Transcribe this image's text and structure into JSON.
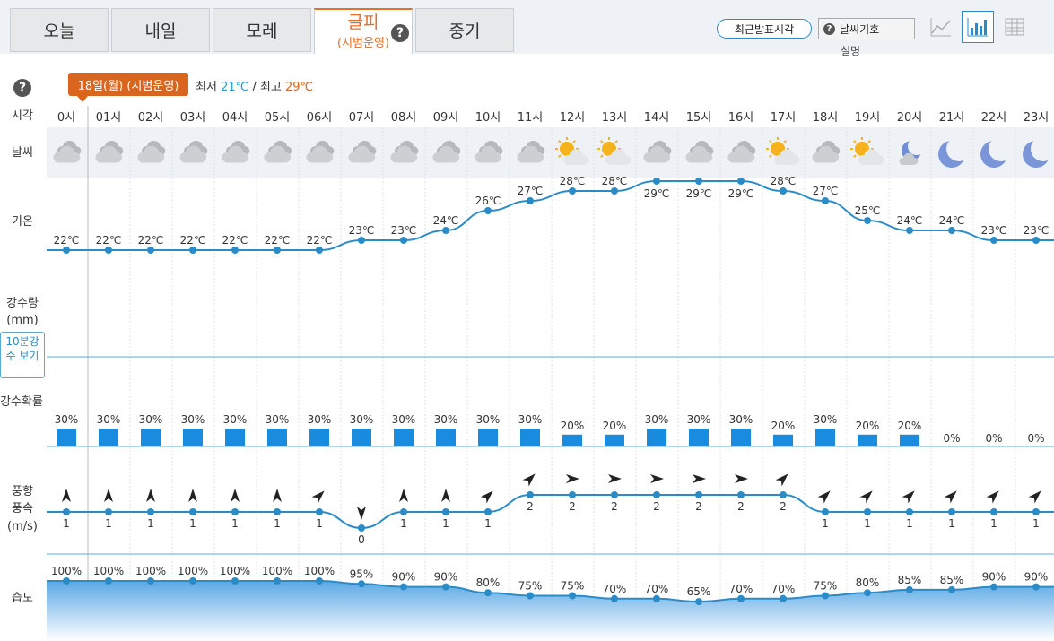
{
  "tabs": [
    {
      "label": "오늘"
    },
    {
      "label": "내일"
    },
    {
      "label": "모레"
    },
    {
      "label": "글피",
      "sub": "(시범운영)"
    },
    {
      "label": "중기"
    }
  ],
  "toolbar": {
    "recent_label": "최근발표시각",
    "symbols_label": "날씨기호",
    "explain_label": "설명"
  },
  "header": {
    "date_badge": "18일(월) (시범운영)",
    "min_label": "최저",
    "min_value": "21℃",
    "sep": "/",
    "max_label": "최고",
    "max_value": "29℃"
  },
  "row_labels": {
    "time": "시각",
    "weather": "날씨",
    "temp": "기온",
    "precip_amount": "강수량",
    "precip_unit": "(mm)",
    "ten_min_btn": "10분강수 보기",
    "precip_prob": "강수확률",
    "wind_dir": "풍향",
    "wind_speed": "풍속",
    "wind_unit": "(m/s)",
    "humidity": "습도"
  },
  "colors": {
    "accent_orange": "#d9651f",
    "line_blue": "#2b8bc7",
    "bar_blue": "#1a8ce0",
    "weather_row_bg": "#eef2f6"
  },
  "hours": [
    "0시",
    "01시",
    "02시",
    "03시",
    "04시",
    "05시",
    "06시",
    "07시",
    "08시",
    "09시",
    "10시",
    "11시",
    "12시",
    "13시",
    "14시",
    "15시",
    "16시",
    "17시",
    "18시",
    "19시",
    "20시",
    "21시",
    "22시",
    "23시"
  ],
  "weather_icons": [
    "cloud-icon",
    "cloud-icon",
    "cloud-icon",
    "cloud-icon",
    "cloud-icon",
    "cloud-icon",
    "cloud-icon",
    "cloud-icon",
    "cloud-icon",
    "cloud-icon",
    "cloud-icon",
    "cloud-icon",
    "sun-cloud-icon",
    "sun-cloud-icon",
    "cloud-icon",
    "cloud-icon",
    "cloud-icon",
    "sun-cloud-icon",
    "cloud-icon",
    "sun-cloud-icon",
    "moon-cloud-icon",
    "moon-icon",
    "moon-icon",
    "moon-icon"
  ],
  "chart_data": [
    {
      "type": "line",
      "name": "기온",
      "unit": "℃",
      "x": [
        "0시",
        "01시",
        "02시",
        "03시",
        "04시",
        "05시",
        "06시",
        "07시",
        "08시",
        "09시",
        "10시",
        "11시",
        "12시",
        "13시",
        "14시",
        "15시",
        "16시",
        "17시",
        "18시",
        "19시",
        "20시",
        "21시",
        "22시",
        "23시"
      ],
      "values": [
        22,
        22,
        22,
        22,
        22,
        22,
        22,
        23,
        23,
        24,
        26,
        27,
        28,
        28,
        29,
        29,
        29,
        28,
        27,
        25,
        24,
        24,
        23,
        23
      ],
      "labels": [
        "22℃",
        "22℃",
        "22℃",
        "22℃",
        "22℃",
        "22℃",
        "22℃",
        "23℃",
        "23℃",
        "24℃",
        "26℃",
        "27℃",
        "28℃",
        "28℃",
        "29℃",
        "29℃",
        "29℃",
        "28℃",
        "27℃",
        "25℃",
        "24℃",
        "24℃",
        "23℃",
        "23℃"
      ]
    },
    {
      "type": "bar",
      "name": "강수확률",
      "unit": "%",
      "values": [
        30,
        30,
        30,
        30,
        30,
        30,
        30,
        30,
        30,
        30,
        30,
        30,
        20,
        20,
        30,
        30,
        30,
        20,
        30,
        20,
        20,
        0,
        0,
        0
      ],
      "labels": [
        "30%",
        "30%",
        "30%",
        "30%",
        "30%",
        "30%",
        "30%",
        "30%",
        "30%",
        "30%",
        "30%",
        "30%",
        "20%",
        "20%",
        "30%",
        "30%",
        "30%",
        "20%",
        "30%",
        "20%",
        "20%",
        "0%",
        "0%",
        "0%"
      ]
    },
    {
      "type": "line",
      "name": "풍속",
      "unit": "m/s",
      "values": [
        1,
        1,
        1,
        1,
        1,
        1,
        1,
        0,
        1,
        1,
        1,
        2,
        2,
        2,
        2,
        2,
        2,
        2,
        1,
        1,
        1,
        1,
        1,
        1
      ],
      "labels": [
        "1",
        "1",
        "1",
        "1",
        "1",
        "1",
        "1",
        "0",
        "1",
        "1",
        "1",
        "2",
        "2",
        "2",
        "2",
        "2",
        "2",
        "2",
        "1",
        "1",
        "1",
        "1",
        "1",
        "1"
      ],
      "wind_dir_deg": [
        0,
        0,
        0,
        0,
        0,
        0,
        45,
        180,
        0,
        0,
        45,
        45,
        90,
        90,
        90,
        90,
        90,
        45,
        45,
        45,
        45,
        45,
        45,
        45
      ]
    },
    {
      "type": "area",
      "name": "습도",
      "unit": "%",
      "values": [
        100,
        100,
        100,
        100,
        100,
        100,
        100,
        95,
        90,
        90,
        80,
        75,
        75,
        70,
        70,
        65,
        70,
        70,
        75,
        80,
        85,
        85,
        90,
        90
      ],
      "labels": [
        "100%",
        "100%",
        "100%",
        "100%",
        "100%",
        "100%",
        "100%",
        "95%",
        "90%",
        "90%",
        "80%",
        "75%",
        "75%",
        "70%",
        "70%",
        "65%",
        "70%",
        "70%",
        "75%",
        "80%",
        "85%",
        "85%",
        "90%",
        "90%"
      ]
    }
  ]
}
